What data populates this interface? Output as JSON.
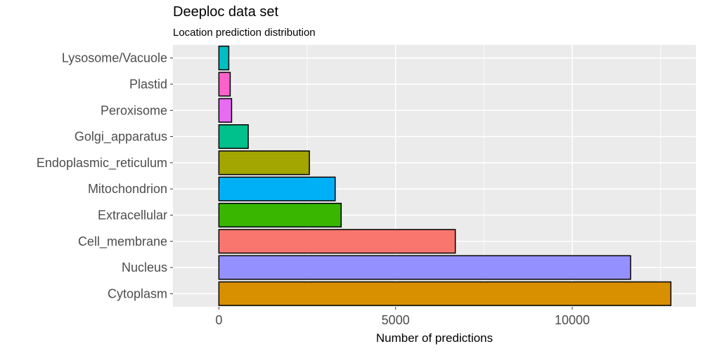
{
  "chart_data": {
    "type": "bar",
    "orientation": "horizontal",
    "title": "Deeploc data set",
    "subtitle": "Location prediction distribution",
    "xlabel": "Number of predictions",
    "ylabel": "",
    "xlim": [
      -1300,
      13500
    ],
    "xticks": [
      0,
      5000,
      10000
    ],
    "xtick_labels": [
      "0",
      "5000",
      "10000"
    ],
    "grid": true,
    "legend": "none",
    "categories": [
      "Lysosome/Vacuole",
      "Plastid",
      "Peroxisome",
      "Golgi_apparatus",
      "Endoplasmic_reticulum",
      "Mitochondrion",
      "Extracellular",
      "Cell_membrane",
      "Nucleus",
      "Cytoplasm"
    ],
    "values": [
      280,
      320,
      360,
      830,
      2560,
      3290,
      3460,
      6690,
      11650,
      12790
    ],
    "colors": [
      "#00BFC4",
      "#FF61CC",
      "#E76BF3",
      "#00C08B",
      "#A3A500",
      "#00B0F6",
      "#39B600",
      "#F8766D",
      "#9590FF",
      "#D89000"
    ]
  }
}
